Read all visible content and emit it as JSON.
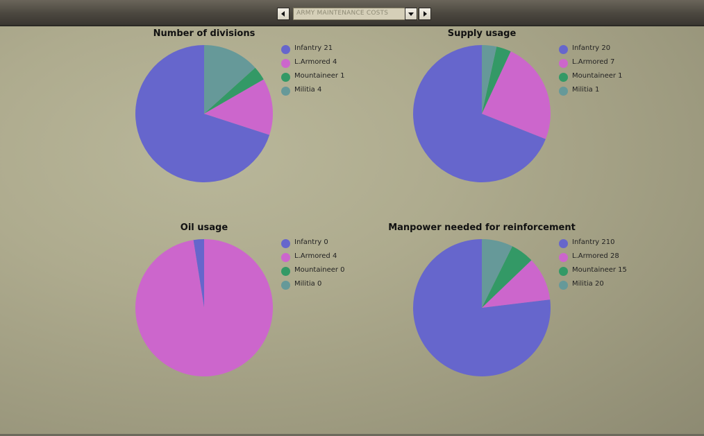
{
  "toolbar": {
    "selected_view": "ARMY MAINTENANCE COSTS"
  },
  "colors": {
    "infantry": "#6666cc",
    "armored": "#cc66cc",
    "mountaineer": "#339966",
    "militia": "#669999"
  },
  "chart_data": [
    {
      "type": "pie",
      "title": "Number of divisions",
      "labels": [
        "Infantry",
        "L.Armored",
        "Mountaineer",
        "Militia"
      ],
      "values": [
        21,
        4,
        1,
        4
      ],
      "legend": [
        "Infantry 21",
        "L.Armored 4",
        "Mountaineer 1",
        "Militia 4"
      ]
    },
    {
      "type": "pie",
      "title": "Supply usage",
      "labels": [
        "Infantry",
        "L.Armored",
        "Mountaineer",
        "Militia"
      ],
      "values": [
        20,
        7,
        1,
        1
      ],
      "legend": [
        "Infantry 20",
        "L.Armored 7",
        "Mountaineer 1",
        "Militia 1"
      ]
    },
    {
      "type": "pie",
      "title": "Oil usage",
      "labels": [
        "Infantry",
        "L.Armored",
        "Mountaineer",
        "Militia"
      ],
      "values": [
        0,
        4,
        0,
        0
      ],
      "slice_shares": [
        0.025,
        0.975,
        0,
        0
      ],
      "legend": [
        "Infantry 0",
        "L.Armored 4",
        "Mountaineer 0",
        "Militia 0"
      ]
    },
    {
      "type": "pie",
      "title": "Manpower needed for reinforcement",
      "labels": [
        "Infantry",
        "L.Armored",
        "Mountaineer",
        "Militia"
      ],
      "values": [
        210,
        28,
        15,
        20
      ],
      "legend": [
        "Infantry 210",
        "L.Armored 28",
        "Mountaineer 15",
        "Militia 20"
      ]
    }
  ]
}
